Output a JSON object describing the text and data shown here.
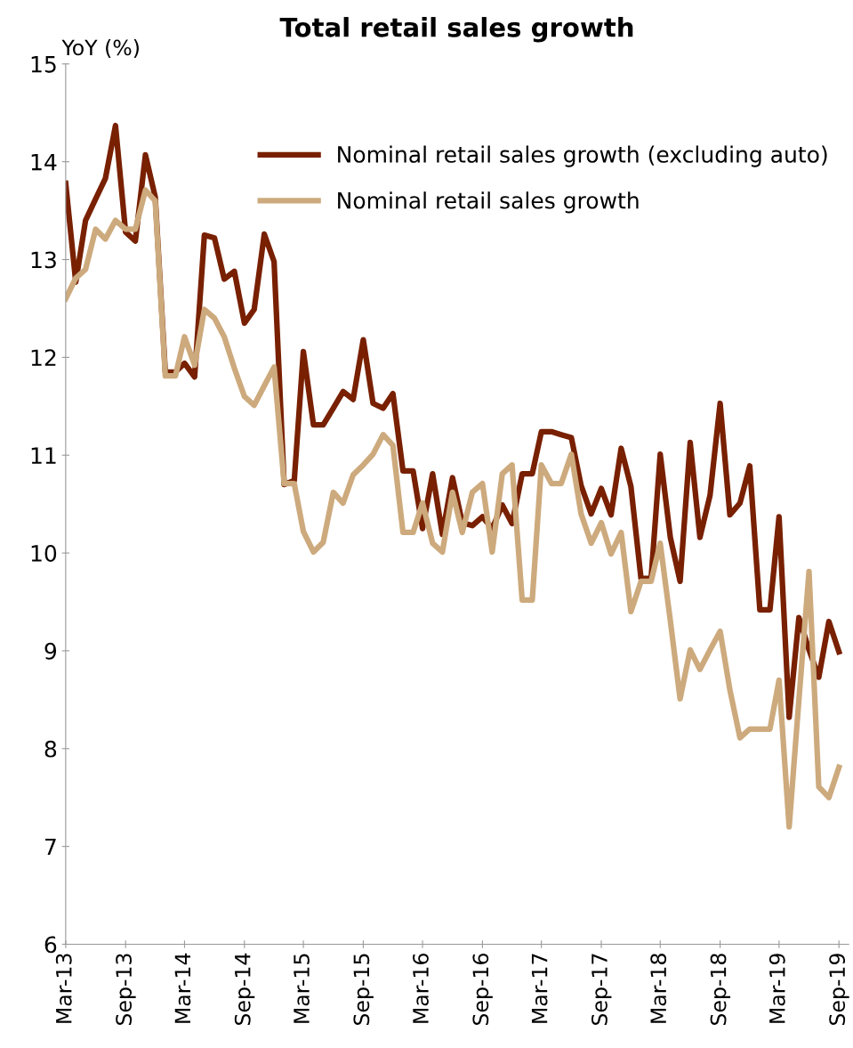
{
  "chart_data": {
    "type": "line",
    "title": "Total retail sales growth",
    "ylabel": "YoY (%)",
    "x": [
      "2013-03",
      "2013-04",
      "2013-05",
      "2013-06",
      "2013-07",
      "2013-08",
      "2013-09",
      "2013-10",
      "2013-11",
      "2013-12",
      "2014-01",
      "2014-02",
      "2014-03",
      "2014-04",
      "2014-05",
      "2014-06",
      "2014-07",
      "2014-08",
      "2014-09",
      "2014-10",
      "2014-11",
      "2014-12",
      "2015-01",
      "2015-02",
      "2015-03",
      "2015-04",
      "2015-05",
      "2015-06",
      "2015-07",
      "2015-08",
      "2015-09",
      "2015-10",
      "2015-11",
      "2015-12",
      "2016-01",
      "2016-02",
      "2016-03",
      "2016-04",
      "2016-05",
      "2016-06",
      "2016-07",
      "2016-08",
      "2016-09",
      "2016-10",
      "2016-11",
      "2016-12",
      "2017-01",
      "2017-02",
      "2017-03",
      "2017-04",
      "2017-05",
      "2017-06",
      "2017-07",
      "2017-08",
      "2017-09",
      "2017-10",
      "2017-11",
      "2017-12",
      "2018-01",
      "2018-02",
      "2018-03",
      "2018-04",
      "2018-05",
      "2018-06",
      "2018-07",
      "2018-08",
      "2018-09",
      "2018-10",
      "2018-11",
      "2018-12",
      "2019-01",
      "2019-02",
      "2019-03",
      "2019-04",
      "2019-05",
      "2019-06",
      "2019-07",
      "2019-08",
      "2019-09"
    ],
    "series": [
      {
        "name": "Nominal retail sales growth (excluding auto)",
        "color": "#782000",
        "values": [
          13.78,
          12.77,
          13.4,
          13.62,
          13.83,
          14.37,
          13.28,
          13.19,
          14.07,
          13.64,
          11.85,
          11.85,
          11.94,
          11.8,
          13.25,
          13.22,
          12.8,
          12.88,
          12.35,
          12.49,
          13.26,
          12.98,
          10.7,
          10.74,
          12.06,
          11.31,
          11.31,
          11.48,
          11.65,
          11.57,
          12.18,
          11.53,
          11.48,
          11.63,
          10.84,
          10.84,
          10.25,
          10.81,
          10.19,
          10.77,
          10.31,
          10.28,
          10.37,
          10.25,
          10.49,
          10.3,
          10.81,
          10.81,
          11.24,
          11.24,
          11.21,
          11.18,
          10.69,
          10.4,
          10.66,
          10.39,
          11.07,
          10.68,
          9.74,
          9.74,
          11.01,
          10.16,
          9.71,
          11.13,
          10.16,
          10.59,
          11.53,
          10.39,
          10.51,
          10.89,
          9.42,
          9.42,
          10.37,
          8.32,
          9.34,
          9.01,
          8.73,
          9.3,
          8.99
        ]
      },
      {
        "name": "Nominal retail sales growth",
        "color": "#cdaa7d",
        "values": [
          12.6,
          12.81,
          12.9,
          13.31,
          13.21,
          13.4,
          13.31,
          13.31,
          13.71,
          13.6,
          11.81,
          11.81,
          12.21,
          11.92,
          12.49,
          12.4,
          12.21,
          11.89,
          11.6,
          11.51,
          11.71,
          11.9,
          10.71,
          10.71,
          10.22,
          10.01,
          10.11,
          10.62,
          10.51,
          10.8,
          10.9,
          11.01,
          11.21,
          11.1,
          10.21,
          10.21,
          10.51,
          10.1,
          10.01,
          10.62,
          10.21,
          10.62,
          10.71,
          10.01,
          10.81,
          10.9,
          9.52,
          9.52,
          10.9,
          10.71,
          10.71,
          11.01,
          10.4,
          10.1,
          10.31,
          9.99,
          10.21,
          9.4,
          9.71,
          9.71,
          10.1,
          9.31,
          8.51,
          9.01,
          8.81,
          9.01,
          9.2,
          8.6,
          8.11,
          8.2,
          8.2,
          8.2,
          8.7,
          7.2,
          8.5,
          9.81,
          7.61,
          7.5,
          7.81
        ]
      }
    ],
    "xlim": [
      "2013-03",
      "2019-10"
    ],
    "xticks": [
      {
        "value": "2013-03",
        "label": "Mar-13"
      },
      {
        "value": "2013-09",
        "label": "Sep-13"
      },
      {
        "value": "2014-03",
        "label": "Mar-14"
      },
      {
        "value": "2014-09",
        "label": "Sep-14"
      },
      {
        "value": "2015-03",
        "label": "Mar-15"
      },
      {
        "value": "2015-09",
        "label": "Sep-15"
      },
      {
        "value": "2016-03",
        "label": "Mar-16"
      },
      {
        "value": "2016-09",
        "label": "Sep-16"
      },
      {
        "value": "2017-03",
        "label": "Mar-17"
      },
      {
        "value": "2017-09",
        "label": "Sep-17"
      },
      {
        "value": "2018-03",
        "label": "Mar-18"
      },
      {
        "value": "2018-09",
        "label": "Sep-18"
      },
      {
        "value": "2019-03",
        "label": "Mar-19"
      },
      {
        "value": "2019-09",
        "label": "Sep-19"
      }
    ],
    "ylim": [
      6,
      15
    ],
    "yticks": [
      6,
      7,
      8,
      9,
      10,
      11,
      12,
      13,
      14,
      15
    ],
    "grid": false,
    "legend": "top right",
    "marker": "none",
    "line_style": "solid"
  }
}
